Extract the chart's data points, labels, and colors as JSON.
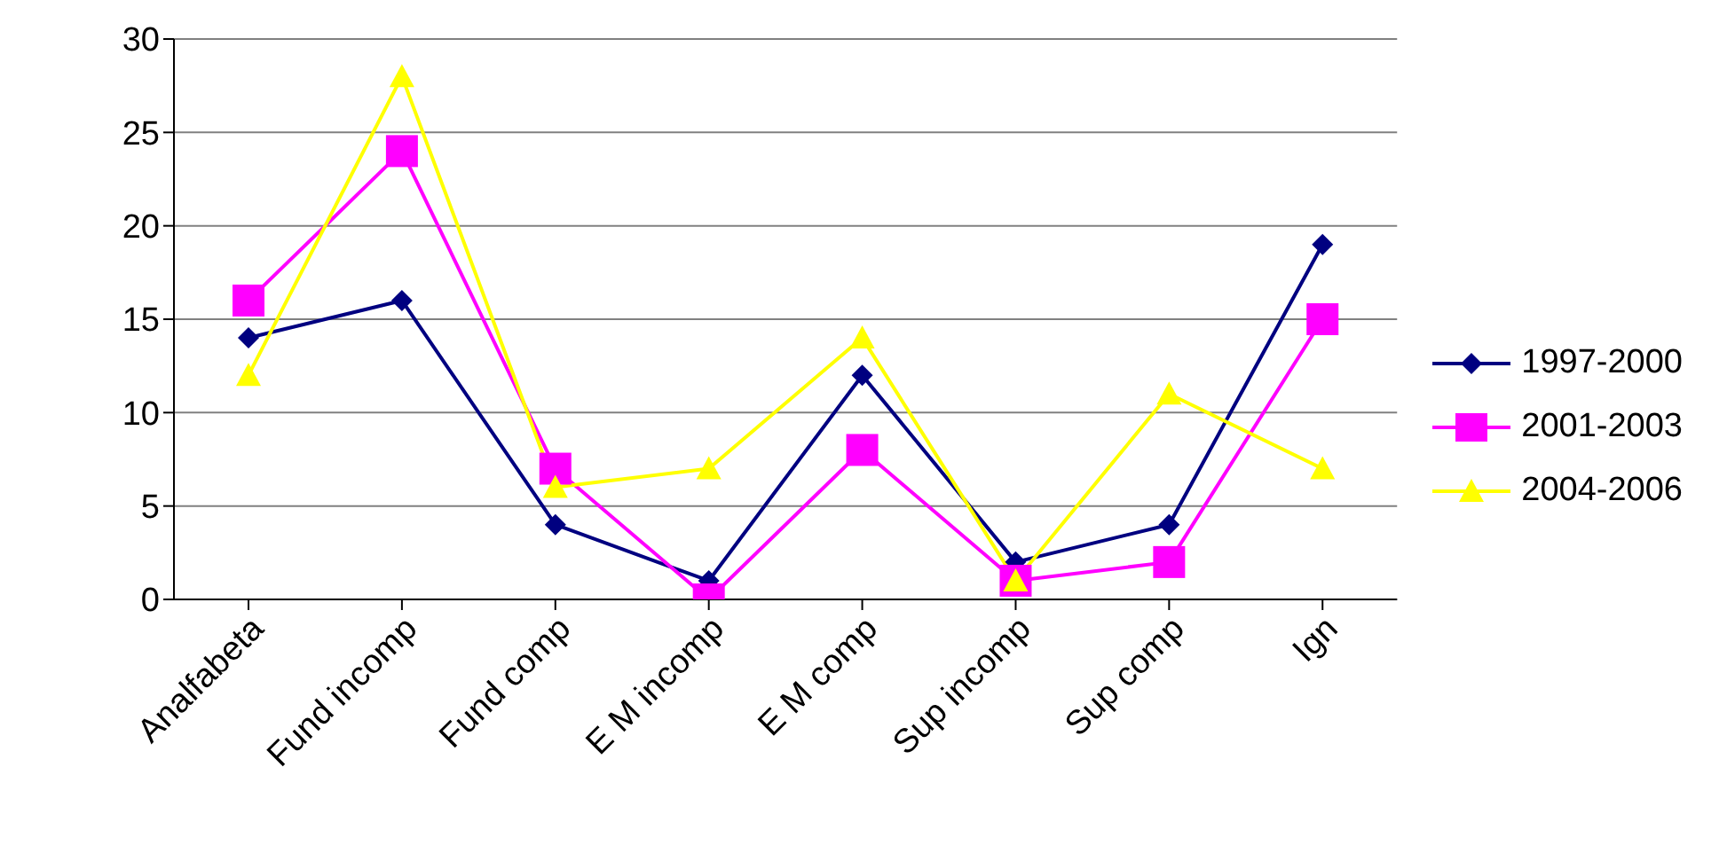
{
  "chart_data": {
    "type": "line",
    "categories": [
      "Analfabeta",
      "Fund incomp",
      "Fund comp",
      "E M incomp",
      "E M comp",
      "Sup incomp",
      "Sup comp",
      "Ign"
    ],
    "series": [
      {
        "name": "1997-2000",
        "color": "#000080",
        "marker": "diamond",
        "values": [
          14,
          16,
          4,
          1,
          12,
          2,
          4,
          19
        ]
      },
      {
        "name": "2001-2003",
        "color": "#ff00ff",
        "marker": "square",
        "values": [
          16,
          24,
          7,
          0,
          8,
          1,
          2,
          15
        ]
      },
      {
        "name": "2004-2006",
        "color": "#ffff00",
        "marker": "triangle",
        "values": [
          12,
          28,
          6,
          7,
          14,
          1,
          11,
          7
        ]
      }
    ],
    "ylim": [
      0,
      30
    ],
    "yticks": [
      0,
      5,
      10,
      15,
      20,
      25,
      30
    ],
    "grid": "y",
    "legend": "right"
  }
}
